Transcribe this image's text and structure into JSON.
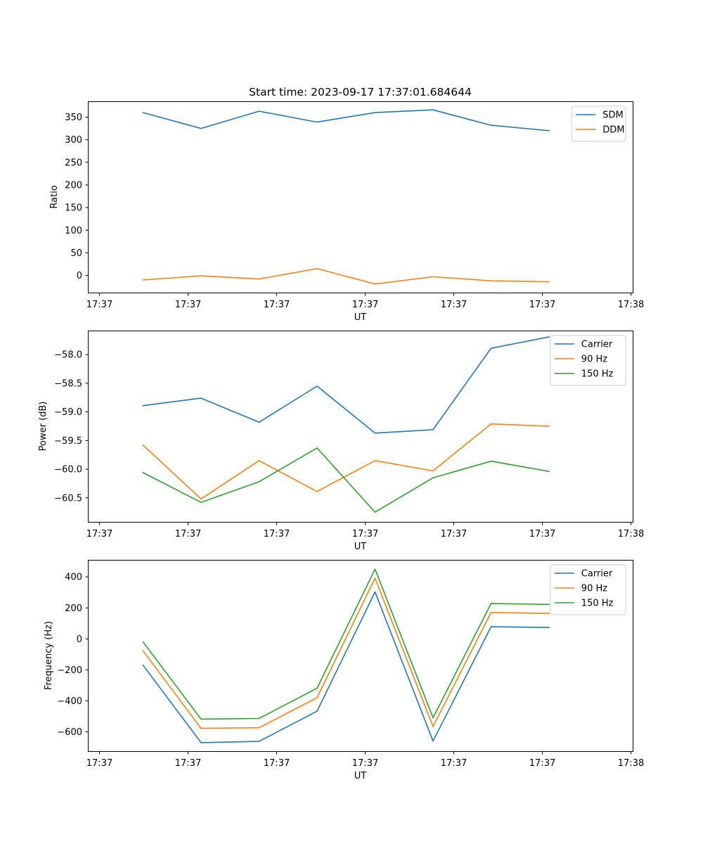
{
  "chart_data": [
    {
      "type": "line",
      "title": "Start time: 2023-09-17 17:37:01.684644",
      "xlabel": "UT",
      "ylabel": "Ratio",
      "x_tick_labels": [
        "17:37",
        "17:37",
        "17:37",
        "17:37",
        "17:37",
        "17:37",
        "17:38"
      ],
      "x_points": 8,
      "ylim": [
        -38,
        385
      ],
      "y_ticks": [
        0,
        50,
        100,
        150,
        200,
        250,
        300,
        350
      ],
      "y_tick_labels": [
        "0",
        "50",
        "100",
        "150",
        "200",
        "250",
        "300",
        "350"
      ],
      "legend_position": "top-right",
      "grid": false,
      "series": [
        {
          "name": "SDM",
          "color": "#1f77b4",
          "values": [
            360,
            325,
            363,
            339,
            360,
            366,
            332,
            320
          ]
        },
        {
          "name": "DDM",
          "color": "#ff7f0e",
          "values": [
            -10,
            -1,
            -8,
            15,
            -19,
            -3,
            -12,
            -14
          ]
        }
      ]
    },
    {
      "type": "line",
      "title": "",
      "xlabel": "UT",
      "ylabel": "Power (dB)",
      "x_tick_labels": [
        "17:37",
        "17:37",
        "17:37",
        "17:37",
        "17:37",
        "17:37",
        "17:38"
      ],
      "x_points": 8,
      "ylim": [
        -60.92,
        -57.58
      ],
      "y_ticks": [
        -60.5,
        -60.0,
        -59.5,
        -59.0,
        -58.5,
        -58.0
      ],
      "y_tick_labels": [
        "−60.5",
        "−60.0",
        "−59.5",
        "−59.0",
        "−58.5",
        "−58.0"
      ],
      "legend_position": "top-right",
      "grid": false,
      "series": [
        {
          "name": "Carrier",
          "color": "#1f77b4",
          "values": [
            -58.89,
            -58.76,
            -59.18,
            -58.55,
            -59.37,
            -59.31,
            -57.89,
            -57.69
          ]
        },
        {
          "name": "90 Hz",
          "color": "#ff7f0e",
          "values": [
            -59.58,
            -60.52,
            -59.85,
            -60.39,
            -59.85,
            -60.03,
            -59.21,
            -59.25
          ]
        },
        {
          "name": "150 Hz",
          "color": "#2ca02c",
          "values": [
            -60.06,
            -60.58,
            -60.22,
            -59.63,
            -60.75,
            -60.15,
            -59.86,
            -60.04
          ]
        }
      ]
    },
    {
      "type": "line",
      "title": "",
      "xlabel": "UT",
      "ylabel": "Frequency (Hz)",
      "x_tick_labels": [
        "17:37",
        "17:37",
        "17:37",
        "17:37",
        "17:37",
        "17:37",
        "17:38"
      ],
      "x_points": 8,
      "ylim": [
        -725,
        510
      ],
      "y_ticks": [
        -600,
        -400,
        -200,
        0,
        200,
        400
      ],
      "y_tick_labels": [
        "−600",
        "−400",
        "−200",
        "0",
        "200",
        "400"
      ],
      "legend_position": "top-right",
      "grid": false,
      "series": [
        {
          "name": "Carrier",
          "color": "#1f77b4",
          "values": [
            -170,
            -670,
            -662,
            -467,
            303,
            -660,
            78,
            73
          ]
        },
        {
          "name": "90 Hz",
          "color": "#ff7f0e",
          "values": [
            -77,
            -578,
            -574,
            -380,
            392,
            -566,
            170,
            164
          ]
        },
        {
          "name": "150 Hz",
          "color": "#2ca02c",
          "values": [
            -20,
            -518,
            -514,
            -319,
            450,
            -510,
            228,
            222
          ]
        }
      ]
    }
  ]
}
